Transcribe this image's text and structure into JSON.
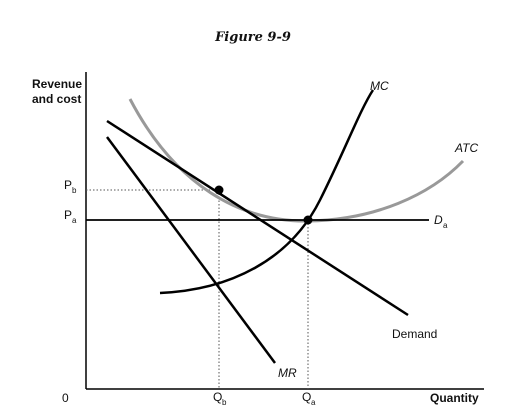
{
  "figure": {
    "title": "Figure 9-9",
    "y_axis_label_line1": "Revenue",
    "y_axis_label_line2": "and cost",
    "x_axis_label": "Quantity",
    "origin_label": "0"
  },
  "price_labels": {
    "pb_main": "P",
    "pb_sub": "b",
    "pa_main": "P",
    "pa_sub": "a"
  },
  "quantity_labels": {
    "qb_main": "Q",
    "qb_sub": "b",
    "qa_main": "Q",
    "qa_sub": "a"
  },
  "curves": {
    "mc": "MC",
    "atc": "ATC",
    "mr": "MR",
    "demand": "Demand",
    "da_main": "D",
    "da_sub": "a"
  },
  "colors": {
    "black_curves": "#000000",
    "atc_curve": "#999999",
    "dotted_guides": "#555555"
  }
}
